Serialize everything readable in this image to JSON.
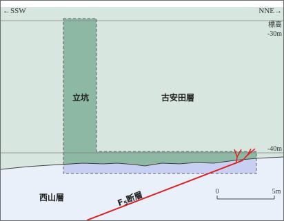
{
  "direction": {
    "left": "←SSW",
    "right": "NNE→"
  },
  "elevation": {
    "label": "標高",
    "top_value": "-30m",
    "bottom_value": "-40m"
  },
  "layers": {
    "upper_formation": "古安田層",
    "lower_formation": "西山層",
    "shaft": "立坑"
  },
  "fault": {
    "prefix": "F",
    "subscript": "5",
    "suffix": "断層"
  },
  "scale": {
    "start": "0",
    "end": "5m"
  },
  "colors": {
    "upper_formation": "#d7e6df",
    "lower_formation": "#e9f0fa",
    "shaft_fill": "#8cb8a4",
    "excavation_fill": "#c7d0f3",
    "fault_line": "#e02020",
    "frame": "#6b6b6b"
  }
}
